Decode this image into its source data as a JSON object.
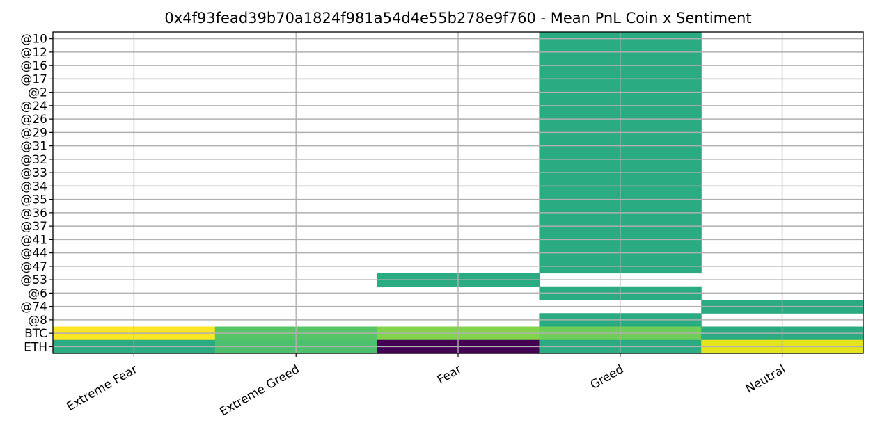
{
  "chart_data": {
    "type": "heatmap",
    "title": "0x4f93fead39b70a1824f981a54d4e55b278e9f760 - Mean PnL Coin x Sentiment",
    "x_categories": [
      "Extreme Fear",
      "Extreme Greed",
      "Fear",
      "Greed",
      "Neutral"
    ],
    "y_categories": [
      "@10",
      "@12",
      "@16",
      "@17",
      "@2",
      "@24",
      "@26",
      "@29",
      "@31",
      "@32",
      "@33",
      "@34",
      "@35",
      "@36",
      "@37",
      "@41",
      "@44",
      "@47",
      "@53",
      "@6",
      "@74",
      "@8",
      "BTC",
      "ETH"
    ],
    "colormap": "viridis",
    "grid": true,
    "colors": {
      "missing": "#ffffff",
      "grid": "#b0b0b0",
      "viridis_low": "#440154",
      "viridis_high": "#fde725"
    },
    "values": [
      [
        null,
        null,
        null,
        0.55,
        null
      ],
      [
        null,
        null,
        null,
        0.55,
        null
      ],
      [
        null,
        null,
        null,
        0.55,
        null
      ],
      [
        null,
        null,
        null,
        0.55,
        null
      ],
      [
        null,
        null,
        null,
        0.55,
        null
      ],
      [
        null,
        null,
        null,
        0.55,
        null
      ],
      [
        null,
        null,
        null,
        0.55,
        null
      ],
      [
        null,
        null,
        null,
        0.55,
        null
      ],
      [
        null,
        null,
        null,
        0.55,
        null
      ],
      [
        null,
        null,
        null,
        0.55,
        null
      ],
      [
        null,
        null,
        null,
        0.55,
        null
      ],
      [
        null,
        null,
        null,
        0.55,
        null
      ],
      [
        null,
        null,
        null,
        0.55,
        null
      ],
      [
        null,
        null,
        null,
        0.55,
        null
      ],
      [
        null,
        null,
        null,
        0.55,
        null
      ],
      [
        null,
        null,
        null,
        0.55,
        null
      ],
      [
        null,
        null,
        null,
        0.55,
        null
      ],
      [
        null,
        null,
        null,
        0.55,
        null
      ],
      [
        null,
        null,
        0.55,
        null,
        null
      ],
      [
        null,
        null,
        null,
        0.55,
        null
      ],
      [
        null,
        null,
        null,
        null,
        0.55
      ],
      [
        null,
        null,
        null,
        0.55,
        null
      ],
      [
        1.0,
        0.66,
        0.73,
        0.7,
        0.55
      ],
      [
        0.55,
        0.64,
        0.0,
        0.55,
        0.92
      ]
    ]
  }
}
